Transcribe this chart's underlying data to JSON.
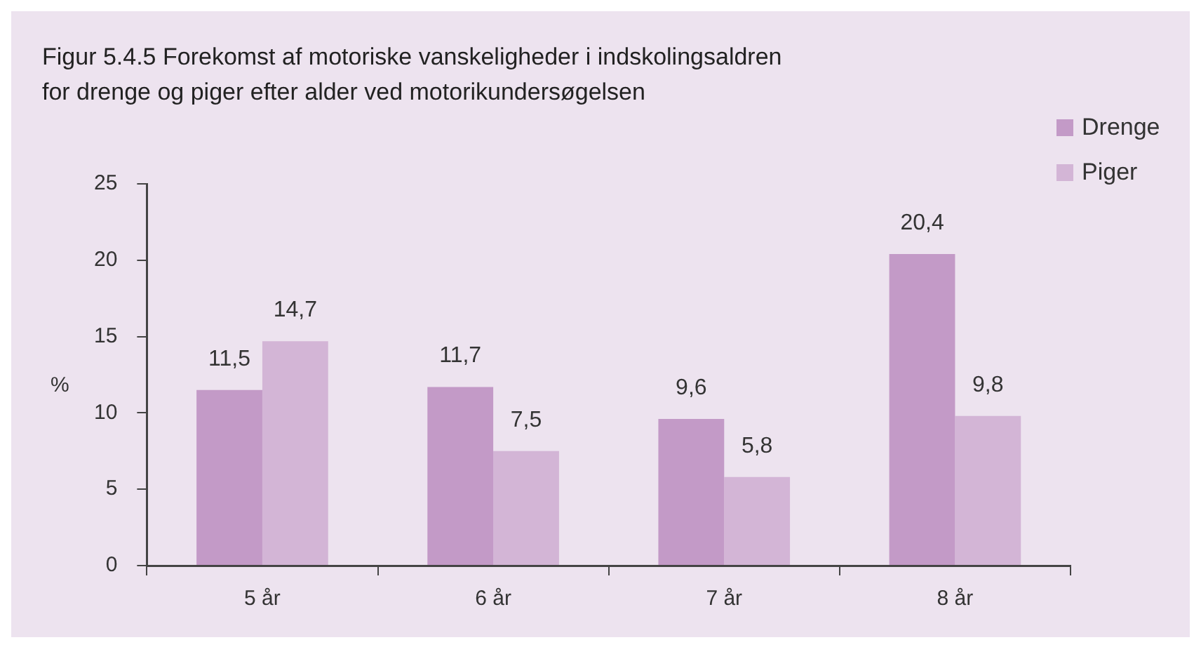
{
  "chart_data": {
    "type": "bar",
    "title": "Figur 5.4.5 Forekomst af motoriske vanskeligheder i indskolingsaldren\nfor drenge og piger efter alder ved motorikundersøgelsen",
    "ylabel": "%",
    "categories": [
      "5 år",
      "6 år",
      "7 år",
      "8 år"
    ],
    "series": [
      {
        "name": "Drenge",
        "color": "#c39ac7",
        "values": [
          11.5,
          11.7,
          9.6,
          20.4
        ],
        "value_labels": [
          "11,5",
          "11,7",
          "9,6",
          "20,4"
        ]
      },
      {
        "name": "Piger",
        "color": "#d3b5d6",
        "values": [
          14.7,
          7.5,
          5.8,
          9.8
        ],
        "value_labels": [
          "14,7",
          "7,5",
          "5,8",
          "9,8"
        ]
      }
    ],
    "ylim": [
      0,
      25
    ],
    "yticks": [
      0,
      5,
      10,
      15,
      20,
      25
    ],
    "grid": false,
    "legend": "top right"
  }
}
